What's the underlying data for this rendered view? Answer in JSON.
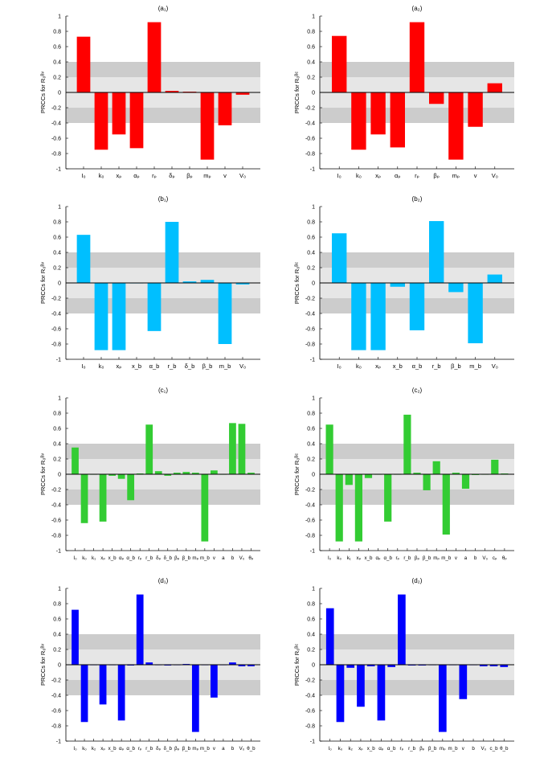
{
  "colors": {
    "red": "#ff0000",
    "cyan": "#00bfff",
    "green": "#33cc33",
    "blue": "#0000ff",
    "band_dark": "#cccccc",
    "band_light": "#e6e6e6"
  },
  "chart_data": [
    {
      "id": "a1",
      "type": "bar",
      "color_key": "red",
      "title": "(a₁)",
      "ylabel": "PRCCs for R₀ᴮᵛ",
      "categories": [
        "I₀",
        "k₀",
        "xₚ",
        "αₚ",
        "rₚ",
        "δₚ",
        "βₚ",
        "mₚ",
        "v",
        "V₀"
      ],
      "values": [
        0.73,
        -0.75,
        -0.55,
        -0.73,
        0.92,
        0.02,
        0.01,
        -0.88,
        -0.43,
        -0.03
      ],
      "ylim": [
        -1,
        1
      ],
      "yticks": [
        "-1",
        "-0.8",
        "-0.6",
        "-0.4",
        "-0.2",
        "0",
        "0.2",
        "0.4",
        "0.6",
        "0.8",
        "1"
      ],
      "bands": {
        "outer": 0.4,
        "inner": 0.2
      }
    },
    {
      "id": "a2",
      "type": "bar",
      "color_key": "red",
      "title": "(a₂)",
      "ylabel": "PRCCs for R₀ᴮᶜ",
      "categories": [
        "I₀",
        "k₀",
        "xₚ",
        "αₚ",
        "rₚ",
        "βₚ",
        "mₚ",
        "v",
        "V₀"
      ],
      "values": [
        0.74,
        -0.75,
        -0.55,
        -0.72,
        0.92,
        -0.15,
        -0.88,
        -0.45,
        0.12
      ],
      "ylim": [
        -1,
        1
      ],
      "yticks": [
        "-1",
        "-0.8",
        "-0.6",
        "-0.4",
        "-0.2",
        "0",
        "0.2",
        "0.4",
        "0.6",
        "0.8",
        "1"
      ],
      "bands": {
        "outer": 0.4,
        "inner": 0.2
      }
    },
    {
      "id": "b1",
      "type": "bar",
      "color_key": "cyan",
      "title": "(b₁)",
      "ylabel": "PRCCs for R₀ᴮᵛ",
      "categories": [
        "I₀",
        "k₀",
        "xₚ",
        "x_b",
        "α_b",
        "r_b",
        "δ_b",
        "β_b",
        "m_b",
        "V₀"
      ],
      "values": [
        0.63,
        -0.88,
        -0.88,
        0.0,
        -0.63,
        0.8,
        0.02,
        0.04,
        -0.8,
        -0.02
      ],
      "ylim": [
        -1,
        1
      ],
      "yticks": [
        "-1",
        "-0.8",
        "-0.6",
        "-0.4",
        "-0.2",
        "0",
        "0.2",
        "0.4",
        "0.6",
        "0.8",
        "1"
      ],
      "bands": {
        "outer": 0.4,
        "inner": 0.2
      }
    },
    {
      "id": "b2",
      "type": "bar",
      "color_key": "cyan",
      "title": "(b₂)",
      "ylabel": "PRCCs for R₀ᴮᶜ",
      "categories": [
        "I₀",
        "k₀",
        "xₚ",
        "x_b",
        "α_b",
        "r_b",
        "β_b",
        "m_b",
        "V₀"
      ],
      "values": [
        0.65,
        -0.88,
        -0.88,
        -0.05,
        -0.62,
        0.81,
        -0.12,
        -0.79,
        0.11
      ],
      "ylim": [
        -1,
        1
      ],
      "yticks": [
        "-1",
        "-0.8",
        "-0.6",
        "-0.4",
        "-0.2",
        "0",
        "0.2",
        "0.4",
        "0.6",
        "0.8",
        "1"
      ],
      "bands": {
        "outer": 0.4,
        "inner": 0.2
      }
    },
    {
      "id": "c1",
      "type": "bar",
      "color_key": "green",
      "title": "(c₁)",
      "ylabel": "PRCCs for R₀ᴮᵛ",
      "categories": [
        "I₀",
        "k₀",
        "k₁",
        "xₚ",
        "x_b",
        "αₚ",
        "α_b",
        "rₚ",
        "r_b",
        "δₚ",
        "δ_b",
        "βₚ",
        "β_b",
        "mₚ",
        "m_b",
        "v",
        "a",
        "b",
        "V₀",
        "θₚ"
      ],
      "values": [
        0.35,
        -0.64,
        0.0,
        -0.62,
        -0.02,
        -0.06,
        -0.34,
        0.01,
        0.65,
        0.04,
        -0.02,
        0.02,
        0.03,
        0.02,
        -0.88,
        0.05,
        0.0,
        0.67,
        0.66,
        0.02
      ],
      "ylim": [
        -1,
        1
      ],
      "yticks": [
        "-1",
        "-0.8",
        "-0.6",
        "-0.4",
        "-0.2",
        "0",
        "0.2",
        "0.4",
        "0.6",
        "0.8",
        "1"
      ],
      "bands": {
        "outer": 0.4,
        "inner": 0.2
      }
    },
    {
      "id": "c2",
      "type": "bar",
      "color_key": "green",
      "title": "(c₂)",
      "ylabel": "PRCCs for R₀ᴮᶜ",
      "categories": [
        "I₀",
        "k₀",
        "k₁",
        "xₚ",
        "x_b",
        "αₚ",
        "α_b",
        "rₚ",
        "r_b",
        "βₚ",
        "β_b",
        "mₚ",
        "m_b",
        "v",
        "a",
        "b",
        "V₀",
        "cₚ",
        "θₚ"
      ],
      "values": [
        0.65,
        -0.88,
        -0.14,
        -0.88,
        -0.05,
        0.0,
        -0.62,
        0.0,
        0.78,
        0.02,
        -0.21,
        0.17,
        -0.79,
        0.02,
        -0.19,
        -0.01,
        0.0,
        0.19,
        0.01
      ],
      "ylim": [
        -1,
        1
      ],
      "yticks": [
        "-1",
        "-0.8",
        "-0.6",
        "-0.4",
        "-0.2",
        "0",
        "0.2",
        "0.4",
        "0.6",
        "0.8",
        "1"
      ],
      "bands": {
        "outer": 0.4,
        "inner": 0.2
      }
    },
    {
      "id": "d1",
      "type": "bar",
      "color_key": "blue",
      "title": "(d₁)",
      "ylabel": "PRCCs for R₀ᴮᵛ",
      "categories": [
        "I₀",
        "k₀",
        "k₂",
        "xₚ",
        "x_b",
        "αₚ",
        "α_b",
        "rₚ",
        "r_b",
        "δₚ",
        "δ_b",
        "βₚ",
        "β_b",
        "mₚ",
        "m_b",
        "v",
        "a",
        "b",
        "V₀",
        "θ_b"
      ],
      "values": [
        0.72,
        -0.75,
        0.0,
        -0.52,
        0.0,
        -0.73,
        -0.01,
        0.92,
        0.03,
        0.0,
        -0.01,
        0.0,
        0.01,
        -0.88,
        0.0,
        -0.43,
        0.0,
        0.03,
        -0.02,
        -0.02
      ],
      "ylim": [
        -1,
        1
      ],
      "yticks": [
        "-1",
        "-0.8",
        "-0.6",
        "-0.4",
        "-0.2",
        "0",
        "0.2",
        "0.4",
        "0.6",
        "0.8",
        "1"
      ],
      "bands": {
        "outer": 0.4,
        "inner": 0.2
      }
    },
    {
      "id": "d2",
      "type": "bar",
      "color_key": "blue",
      "title": "(d₂)",
      "ylabel": "PRCCs for R₀ᴮᶜ",
      "categories": [
        "I₀",
        "k₀",
        "k₂",
        "xₚ",
        "x_b",
        "αₚ",
        "α_b",
        "rₚ",
        "r_b",
        "βₚ",
        "β_b",
        "mₚ",
        "m_b",
        "v",
        "b",
        "V₀",
        "c_b",
        "θ_b"
      ],
      "values": [
        0.74,
        -0.75,
        -0.04,
        -0.55,
        -0.02,
        -0.73,
        -0.03,
        0.92,
        -0.01,
        -0.01,
        0.0,
        -0.88,
        0.0,
        -0.45,
        0.0,
        -0.02,
        -0.02,
        -0.03
      ],
      "ylim": [
        -1,
        1
      ],
      "yticks": [
        "-1",
        "-0.8",
        "-0.6",
        "-0.4",
        "-0.2",
        "0",
        "0.2",
        "0.4",
        "0.6",
        "0.8",
        "1"
      ],
      "bands": {
        "outer": 0.4,
        "inner": 0.2
      }
    }
  ]
}
